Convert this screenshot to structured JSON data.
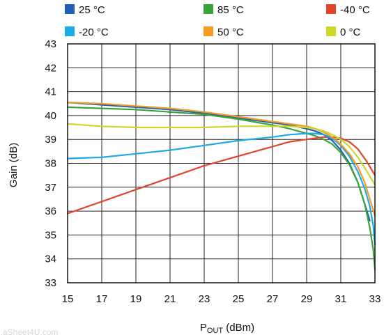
{
  "chart_data": {
    "type": "line",
    "xlabel_main": "P",
    "xlabel_sub": "OUT",
    "xlabel_unit": " (dBm)",
    "ylabel": "Gain (dB)",
    "xlim": [
      15,
      33
    ],
    "ylim": [
      33,
      43
    ],
    "x_ticks": [
      "15",
      "17",
      "19",
      "21",
      "23",
      "25",
      "27",
      "29",
      "31",
      "33"
    ],
    "y_ticks": [
      "33",
      "34",
      "35",
      "36",
      "37",
      "38",
      "39",
      "40",
      "41",
      "42",
      "43"
    ],
    "grid": true,
    "legend_placement": "top",
    "watermark": "...aSheet4U.com",
    "series": [
      {
        "name": "25 °C",
        "color": "#1f5fb4",
        "points": [
          [
            15,
            40.55
          ],
          [
            17,
            40.45
          ],
          [
            19,
            40.35
          ],
          [
            21,
            40.25
          ],
          [
            23,
            40.1
          ],
          [
            25,
            39.9
          ],
          [
            27,
            39.7
          ],
          [
            28,
            39.6
          ],
          [
            29,
            39.45
          ],
          [
            29.5,
            39.35
          ],
          [
            30,
            39.2
          ],
          [
            30.5,
            38.95
          ],
          [
            31,
            38.55
          ],
          [
            31.5,
            38.0
          ],
          [
            32,
            37.2
          ],
          [
            32.4,
            36.3
          ],
          [
            32.7,
            35.6
          ]
        ]
      },
      {
        "name": "85 °C",
        "color": "#3aa33a",
        "points": [
          [
            15,
            40.35
          ],
          [
            17,
            40.3
          ],
          [
            19,
            40.25
          ],
          [
            21,
            40.15
          ],
          [
            23,
            40.05
          ],
          [
            25,
            39.85
          ],
          [
            27,
            39.6
          ],
          [
            28,
            39.45
          ],
          [
            29,
            39.25
          ],
          [
            29.5,
            39.15
          ],
          [
            30,
            39.0
          ],
          [
            30.5,
            38.8
          ],
          [
            31,
            38.45
          ],
          [
            31.5,
            37.95
          ],
          [
            32,
            37.2
          ],
          [
            32.4,
            36.3
          ],
          [
            32.7,
            35.3
          ],
          [
            32.9,
            34.4
          ],
          [
            33,
            33.55
          ]
        ]
      },
      {
        "name": "-40 °C",
        "color": "#e0442c",
        "points": [
          [
            15,
            35.9
          ],
          [
            17,
            36.4
          ],
          [
            19,
            36.9
          ],
          [
            21,
            37.4
          ],
          [
            23,
            37.9
          ],
          [
            25,
            38.3
          ],
          [
            27,
            38.7
          ],
          [
            28,
            38.9
          ],
          [
            29,
            39.0
          ],
          [
            29.5,
            39.05
          ],
          [
            30,
            39.1
          ],
          [
            30.5,
            39.1
          ],
          [
            31,
            39.05
          ],
          [
            31.5,
            38.9
          ],
          [
            32,
            38.6
          ],
          [
            32.5,
            38.1
          ],
          [
            33,
            37.5
          ]
        ]
      },
      {
        "name": "-20 °C",
        "color": "#1ca9e8",
        "points": [
          [
            15,
            38.2
          ],
          [
            17,
            38.25
          ],
          [
            19,
            38.4
          ],
          [
            21,
            38.55
          ],
          [
            23,
            38.75
          ],
          [
            25,
            38.95
          ],
          [
            27,
            39.1
          ],
          [
            28,
            39.2
          ],
          [
            29,
            39.25
          ],
          [
            29.5,
            39.25
          ],
          [
            30,
            39.2
          ],
          [
            30.5,
            39.05
          ],
          [
            31,
            38.75
          ],
          [
            31.5,
            38.3
          ],
          [
            32,
            37.65
          ],
          [
            32.4,
            36.95
          ],
          [
            32.7,
            36.2
          ],
          [
            32.9,
            35.4
          ],
          [
            33,
            34.6
          ]
        ]
      },
      {
        "name": "50 °C",
        "color": "#f79a24",
        "points": [
          [
            15,
            40.55
          ],
          [
            17,
            40.5
          ],
          [
            19,
            40.4
          ],
          [
            21,
            40.3
          ],
          [
            23,
            40.15
          ],
          [
            25,
            39.95
          ],
          [
            27,
            39.75
          ],
          [
            28,
            39.65
          ],
          [
            29,
            39.55
          ],
          [
            29.5,
            39.45
          ],
          [
            30,
            39.3
          ],
          [
            30.5,
            39.1
          ],
          [
            31,
            38.8
          ],
          [
            31.5,
            38.4
          ],
          [
            32,
            37.85
          ],
          [
            32.4,
            37.2
          ],
          [
            32.7,
            36.5
          ],
          [
            33,
            35.8
          ]
        ]
      },
      {
        "name": "0 °C",
        "color": "#cfd626",
        "points": [
          [
            15,
            39.65
          ],
          [
            17,
            39.55
          ],
          [
            19,
            39.5
          ],
          [
            21,
            39.5
          ],
          [
            23,
            39.5
          ],
          [
            25,
            39.55
          ],
          [
            27,
            39.55
          ],
          [
            28,
            39.55
          ],
          [
            29,
            39.5
          ],
          [
            29.5,
            39.45
          ],
          [
            30,
            39.35
          ],
          [
            30.5,
            39.2
          ],
          [
            31,
            39.0
          ],
          [
            31.5,
            38.7
          ],
          [
            32,
            38.25
          ],
          [
            32.5,
            37.7
          ],
          [
            33,
            37.1
          ]
        ]
      }
    ]
  }
}
